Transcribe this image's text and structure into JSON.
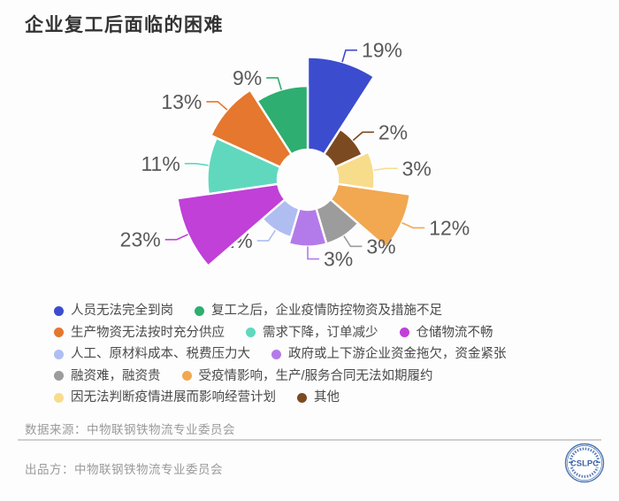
{
  "title": "企业复工后面临的困难",
  "chart_data": {
    "type": "pie",
    "subtype": "nightingale-rose",
    "title": "企业复工后面临的困难",
    "unit": "%",
    "grid": false,
    "legend_position": "bottom",
    "label_color": "#595959",
    "segments": [
      {
        "label": "人员无法完全到岗",
        "value": 19,
        "color": "#3C4CCE"
      },
      {
        "label": "其他",
        "value": 2,
        "color": "#7C4A20"
      },
      {
        "label": "因无法判断疫情进展而影响经营计划",
        "value": 3,
        "color": "#F7DC8C"
      },
      {
        "label": "受疫情影响，生产/服务合同无法如期履约",
        "value": 12,
        "color": "#F1A850"
      },
      {
        "label": "融资难，融资贵",
        "value": 3,
        "color": "#9C9C9C"
      },
      {
        "label": "政府或上下游企业资金拖欠，资金紧张",
        "value": 3,
        "color": "#B37BE9"
      },
      {
        "label": "人工、原材料成本、税费压力大",
        "value": 2,
        "color": "#AFBDF1"
      },
      {
        "label": "仓储物流不畅",
        "value": 23,
        "color": "#C040D8"
      },
      {
        "label": "需求下降，订单减少",
        "value": 11,
        "color": "#60D8BE"
      },
      {
        "label": "生产物资无法按时充分供应",
        "value": 13,
        "color": "#E5772E"
      },
      {
        "label": "复工之后，企业疫情防控物资及措施不足",
        "value": 9,
        "color": "#2EAE70"
      }
    ],
    "legend_rows": [
      [
        0,
        10
      ],
      [
        9,
        8,
        7
      ],
      [
        6,
        5
      ],
      [
        4,
        3
      ],
      [
        2,
        1
      ]
    ]
  },
  "footer": {
    "source_label": "数据来源：中物联钢铁物流专业委员会",
    "producer_label": "出品方：中物联钢铁物流专业委员会",
    "logo_text": "CSLPC"
  }
}
